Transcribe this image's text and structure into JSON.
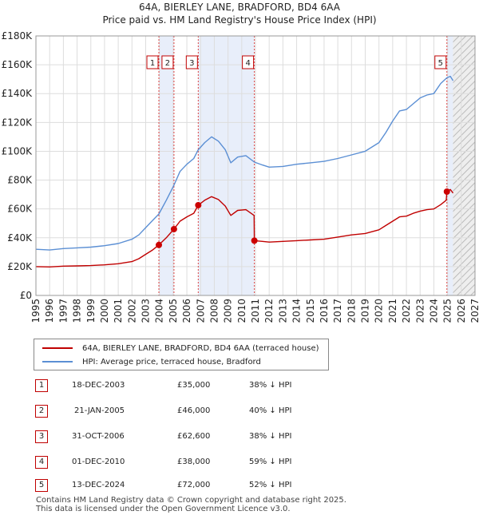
{
  "title_line1": "64A, BIERLEY LANE, BRADFORD, BD4 6AA",
  "title_line2": "Price paid vs. HM Land Registry's House Price Index (HPI)",
  "legend": {
    "series1": "64A, BIERLEY LANE, BRADFORD, BD4 6AA (terraced house)",
    "series2": "HPI: Average price, terraced house, Bradford"
  },
  "colors": {
    "price": "#c00000",
    "hpi": "#5b8fd4",
    "band": "#e8eefa",
    "marker": "#cc0000"
  },
  "transactions": [
    {
      "num": "1",
      "date": "18-DEC-2003",
      "price": "£35,000",
      "hpi": "38% ↓ HPI"
    },
    {
      "num": "2",
      "date": "21-JAN-2005",
      "price": "£46,000",
      "hpi": "40% ↓ HPI"
    },
    {
      "num": "3",
      "date": "31-OCT-2006",
      "price": "£62,600",
      "hpi": "38% ↓ HPI"
    },
    {
      "num": "4",
      "date": "01-DEC-2010",
      "price": "£38,000",
      "hpi": "59% ↓ HPI"
    },
    {
      "num": "5",
      "date": "13-DEC-2024",
      "price": "£72,000",
      "hpi": "52% ↓ HPI"
    }
  ],
  "footer_line1": "Contains HM Land Registry data © Crown copyright and database right 2025.",
  "footer_line2": "This data is licensed under the Open Government Licence v3.0.",
  "chart_data": {
    "type": "line",
    "xlim": [
      1995,
      2027
    ],
    "ylim": [
      0,
      180000
    ],
    "yticks": [
      0,
      20000,
      40000,
      60000,
      80000,
      100000,
      120000,
      140000,
      160000,
      180000
    ],
    "ytick_labels": [
      "£0",
      "£20K",
      "£40K",
      "£60K",
      "£80K",
      "£100K",
      "£120K",
      "£140K",
      "£160K",
      "£180K"
    ],
    "xticks": [
      1995,
      1996,
      1997,
      1998,
      1999,
      2000,
      2001,
      2002,
      2003,
      2004,
      2005,
      2006,
      2007,
      2008,
      2009,
      2010,
      2011,
      2012,
      2013,
      2014,
      2015,
      2016,
      2017,
      2018,
      2019,
      2020,
      2021,
      2022,
      2023,
      2024,
      2025,
      2026,
      2027
    ],
    "shaded_ranges": [
      [
        2003.96,
        2005.06
      ],
      [
        2006.83,
        2010.92
      ],
      [
        2024.95,
        2025.4
      ]
    ],
    "hatch_from": 2025.4,
    "sales": [
      {
        "label": "1",
        "x": 2003.96,
        "y": 35000
      },
      {
        "label": "2",
        "x": 2005.06,
        "y": 46000
      },
      {
        "label": "3",
        "x": 2006.83,
        "y": 62600
      },
      {
        "label": "4",
        "x": 2010.92,
        "y": 38000
      },
      {
        "label": "5",
        "x": 2024.95,
        "y": 72000
      }
    ],
    "series": [
      {
        "name": "HPI: Average price, terraced house, Bradford",
        "x": [
          1995,
          1996,
          1997,
          1998,
          1999,
          2000,
          2001,
          2002,
          2002.5,
          2003,
          2003.5,
          2003.96,
          2004.5,
          2005.06,
          2005.5,
          2006,
          2006.5,
          2006.83,
          2007.3,
          2007.8,
          2008.3,
          2008.8,
          2009.2,
          2009.7,
          2010.3,
          2010.92,
          2011.5,
          2012,
          2013,
          2014,
          2015,
          2016,
          2017,
          2018,
          2019,
          2020,
          2020.5,
          2021,
          2021.5,
          2022,
          2022.5,
          2023,
          2023.5,
          2024,
          2024.5,
          2024.95,
          2025.2,
          2025.4
        ],
        "values": [
          32000,
          31500,
          32500,
          33000,
          33500,
          34500,
          36000,
          39000,
          42000,
          47000,
          52000,
          56500,
          66000,
          76500,
          86000,
          91000,
          95000,
          101000,
          106000,
          110000,
          107000,
          101000,
          92000,
          96000,
          97000,
          92500,
          90500,
          89000,
          89500,
          91000,
          92000,
          93000,
          95000,
          97500,
          100000,
          106000,
          113000,
          121000,
          128000,
          129000,
          133000,
          137000,
          139000,
          140000,
          147000,
          151000,
          152000,
          149000
        ]
      },
      {
        "name": "64A, BIERLEY LANE, BRADFORD, BD4 6AA (terraced house)",
        "x": [
          1995,
          1996,
          1997,
          1998,
          1999,
          2000,
          2001,
          2002,
          2002.5,
          2003,
          2003.5,
          2003.96,
          2004.5,
          2005.06,
          2005.5,
          2006,
          2006.5,
          2006.83,
          2007.3,
          2007.8,
          2008.3,
          2008.8,
          2009.2,
          2009.7,
          2010.3,
          2010.9,
          2010.92,
          2011.5,
          2012,
          2013,
          2014,
          2015,
          2016,
          2017,
          2018,
          2019,
          2020,
          2020.5,
          2021,
          2021.5,
          2022,
          2022.5,
          2023,
          2023.5,
          2024,
          2024.5,
          2024.9,
          2024.95,
          2025.2,
          2025.4
        ],
        "values": [
          20000,
          19800,
          20300,
          20500,
          20700,
          21200,
          22000,
          23500,
          25500,
          28500,
          31500,
          35000,
          40000,
          46000,
          51500,
          54500,
          57000,
          62600,
          66000,
          68500,
          66500,
          62000,
          55500,
          59000,
          59500,
          55500,
          38000,
          37500,
          37000,
          37500,
          38000,
          38500,
          39000,
          40500,
          42000,
          43000,
          45500,
          48500,
          51500,
          54500,
          55000,
          57000,
          58500,
          59500,
          60000,
          63000,
          66000,
          72000,
          73500,
          71000
        ]
      }
    ]
  }
}
